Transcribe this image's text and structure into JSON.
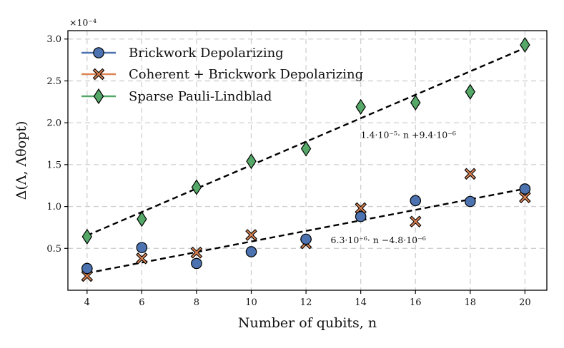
{
  "chart_data": {
    "type": "scatter",
    "xlabel": "Number of qubits, n",
    "ylabel": "Δ(Λ, Λθopt)",
    "y_scale_label": "×10⁻⁴",
    "xlim": [
      3.3,
      20.8
    ],
    "ylim": [
      0.0,
      3.1
    ],
    "x_ticks": [
      4,
      6,
      8,
      10,
      12,
      14,
      16,
      18,
      20
    ],
    "y_ticks": [
      0.5,
      1.0,
      1.5,
      2.0,
      2.5,
      3.0
    ],
    "x_tick_labels": [
      "4",
      "6",
      "8",
      "10",
      "12",
      "14",
      "16",
      "18",
      "20"
    ],
    "y_tick_labels": [
      "0.5",
      "1.0",
      "1.5",
      "2.0",
      "2.5",
      "3.0"
    ],
    "grid": true,
    "legend_position": "upper-left",
    "series": [
      {
        "name": "Brickwork Depolarizing",
        "marker": "circle",
        "color": "#4c72b0",
        "x": [
          4,
          6,
          8,
          10,
          12,
          14,
          16,
          18,
          20
        ],
        "y": [
          0.26,
          0.51,
          0.32,
          0.46,
          0.61,
          0.88,
          1.07,
          1.06,
          1.21
        ]
      },
      {
        "name": "Coherent + Brickwork Depolarizing",
        "marker": "x",
        "color": "#dd8452",
        "x": [
          4,
          6,
          8,
          10,
          12,
          14,
          16,
          18,
          20
        ],
        "y": [
          0.17,
          0.38,
          0.45,
          0.66,
          0.56,
          0.98,
          0.82,
          1.39,
          1.11
        ]
      },
      {
        "name": "Sparse Pauli-Lindblad",
        "marker": "diamond",
        "color": "#55a868",
        "x": [
          4,
          6,
          8,
          10,
          12,
          14,
          16,
          18,
          20
        ],
        "y": [
          0.64,
          0.85,
          1.23,
          1.54,
          1.69,
          2.19,
          2.24,
          2.37,
          2.93
        ]
      }
    ],
    "fits": [
      {
        "label": "1.4·10⁻⁵· n +9.4·10⁻⁶",
        "slope": 0.14,
        "intercept": 0.094,
        "x_range": [
          4,
          20
        ],
        "label_at": [
          14.0,
          1.82
        ]
      },
      {
        "label": "6.3·10⁻⁶· n −4.8·10⁻⁶",
        "slope": 0.063,
        "intercept": -0.048,
        "x_range": [
          4,
          20
        ],
        "label_at": [
          12.9,
          0.56
        ]
      }
    ]
  }
}
